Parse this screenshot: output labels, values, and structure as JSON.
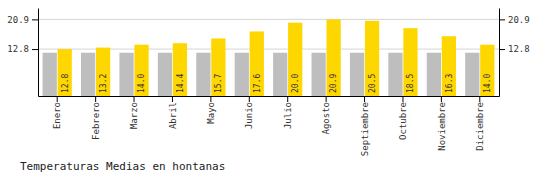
{
  "chart_data": {
    "type": "bar",
    "title": "Temperaturas Medias en hontanas",
    "categories": [
      "Enero",
      "Febrero",
      "Marzo",
      "Abril",
      "Mayo",
      "Junio",
      "Julio",
      "Agosto",
      "Septiembre",
      "Octubre",
      "Noviembre",
      "Diciembre"
    ],
    "series": [
      {
        "color": "#BEBEBE",
        "values": [
          11.8,
          11.8,
          11.8,
          11.8,
          11.8,
          11.8,
          11.8,
          11.8,
          11.8,
          11.8,
          11.8,
          11.8
        ]
      },
      {
        "color": "#FFD700",
        "values": [
          12.8,
          13.2,
          14.0,
          14.4,
          15.7,
          17.6,
          20.0,
          20.9,
          20.5,
          18.5,
          16.3,
          14.0
        ],
        "data_labels": true,
        "value_labels": [
          "12.8",
          "13.2",
          "14.0",
          "14.4",
          "15.7",
          "17.6",
          "20.0",
          "20.9",
          "20.5",
          "18.5",
          "16.3",
          "14.0"
        ]
      }
    ],
    "ylim": [
      0.0,
      24.0
    ],
    "yticks": [
      12.8,
      20.9
    ],
    "y2lim": [
      0.0,
      24.0
    ],
    "y2ticks": [
      12.8,
      20.9
    ],
    "grid": true
  }
}
